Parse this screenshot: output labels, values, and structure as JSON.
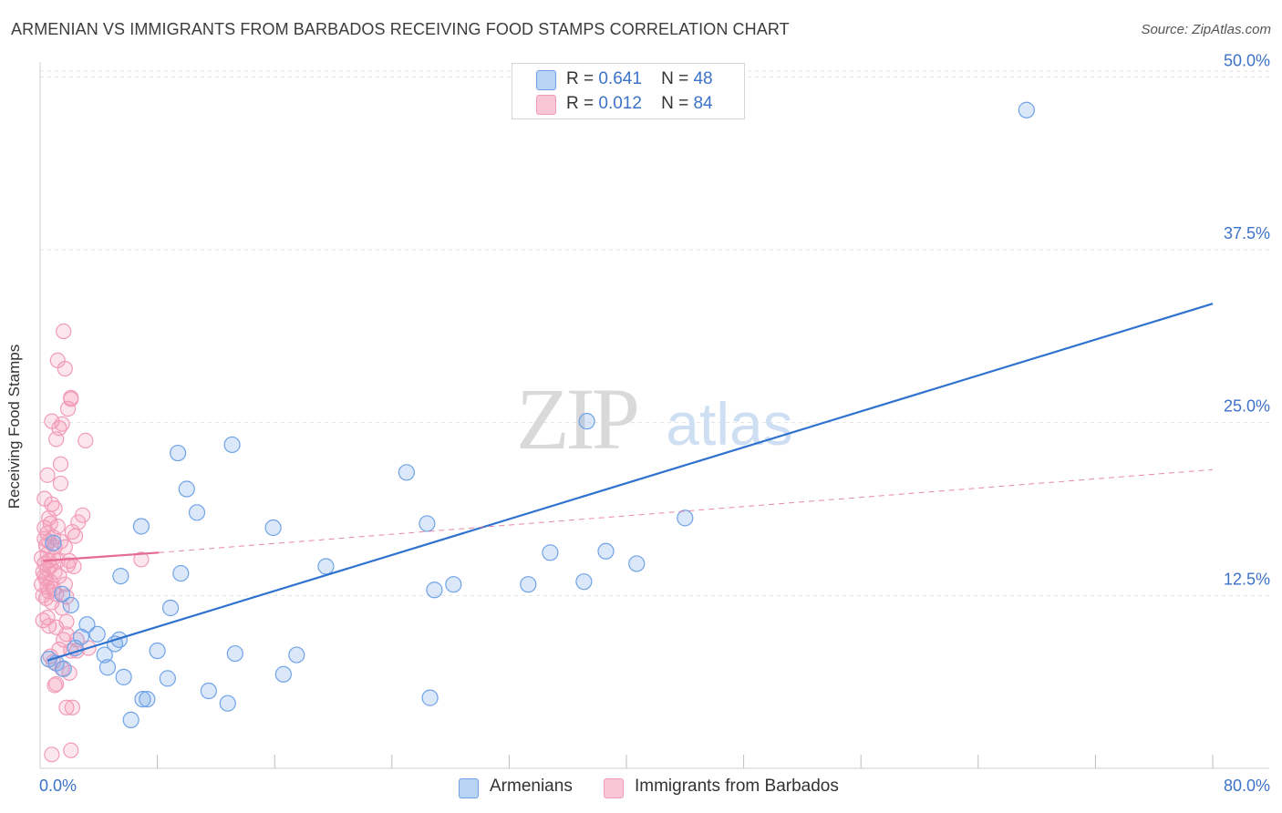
{
  "chart_data": {
    "type": "scatter",
    "title": "ARMENIAN VS IMMIGRANTS FROM BARBADOS RECEIVING FOOD STAMPS CORRELATION CHART",
    "source": "Source: ZipAtlas.com",
    "xlabel": "",
    "ylabel": "Receiving Food Stamps",
    "xlim": [
      0,
      80
    ],
    "ylim": [
      0,
      52
    ],
    "x_tick_labels": [
      "0.0%",
      "80.0%"
    ],
    "y_ticks": [
      12.5,
      25.0,
      37.5,
      50.0
    ],
    "y_tick_labels": [
      "12.5%",
      "25.0%",
      "37.5%",
      "50.0%"
    ],
    "watermark": {
      "zip": "ZIP",
      "atlas": "atlas"
    },
    "legend": [
      {
        "r_label": "R =",
        "r_value": "0.641",
        "n_label": "N =",
        "n_value": "48"
      },
      {
        "r_label": "R =",
        "r_value": "0.012",
        "n_label": "N =",
        "n_value": "84"
      }
    ],
    "series": [
      {
        "name": "Armenians",
        "color": "#6fa3e6",
        "line_color": "#2f72cf",
        "trend": {
          "x": [
            0.5,
            80
          ],
          "y": [
            7.8,
            33.6
          ],
          "style": "solid"
        },
        "points": [
          [
            0.6,
            7.9
          ],
          [
            1.1,
            7.6
          ],
          [
            1.6,
            7.2
          ],
          [
            2.1,
            11.8
          ],
          [
            2.4,
            8.7
          ],
          [
            2.8,
            9.5
          ],
          [
            3.2,
            10.4
          ],
          [
            3.9,
            9.7
          ],
          [
            4.4,
            8.2
          ],
          [
            4.6,
            7.3
          ],
          [
            5.1,
            9.0
          ],
          [
            5.4,
            9.3
          ],
          [
            5.5,
            13.9
          ],
          [
            5.7,
            6.6
          ],
          [
            6.2,
            3.5
          ],
          [
            6.9,
            17.5
          ],
          [
            7.0,
            5.0
          ],
          [
            7.3,
            5.0
          ],
          [
            8.0,
            8.5
          ],
          [
            8.7,
            6.5
          ],
          [
            8.9,
            11.6
          ],
          [
            9.4,
            22.8
          ],
          [
            9.6,
            14.1
          ],
          [
            10.0,
            20.2
          ],
          [
            10.7,
            18.5
          ],
          [
            11.5,
            5.6
          ],
          [
            12.8,
            4.7
          ],
          [
            13.1,
            23.4
          ],
          [
            13.3,
            8.3
          ],
          [
            15.9,
            17.4
          ],
          [
            16.6,
            6.8
          ],
          [
            17.5,
            8.2
          ],
          [
            19.5,
            14.6
          ],
          [
            25.0,
            21.4
          ],
          [
            26.4,
            17.7
          ],
          [
            26.6,
            5.1
          ],
          [
            26.9,
            12.9
          ],
          [
            28.2,
            13.3
          ],
          [
            33.3,
            13.3
          ],
          [
            34.8,
            15.6
          ],
          [
            37.1,
            13.5
          ],
          [
            37.3,
            25.1
          ],
          [
            38.6,
            15.7
          ],
          [
            40.7,
            14.8
          ],
          [
            44.0,
            18.1
          ],
          [
            67.3,
            47.6
          ],
          [
            0.9,
            16.3
          ],
          [
            1.5,
            12.6
          ]
        ]
      },
      {
        "name": "Immigrants from Barbados",
        "color": "#f29bb7",
        "line_color": "#e46b92",
        "trend": {
          "x": [
            0.2,
            8.1
          ],
          "y": [
            15.0,
            15.6
          ],
          "style": "solid"
        },
        "trend_ext": {
          "x": [
            8.1,
            80
          ],
          "y": [
            15.6,
            21.6
          ],
          "style": "dashed"
        },
        "points": [
          [
            0.1,
            13.3
          ],
          [
            0.1,
            15.2
          ],
          [
            0.2,
            14.2
          ],
          [
            0.2,
            12.5
          ],
          [
            0.3,
            16.6
          ],
          [
            0.3,
            13.9
          ],
          [
            0.3,
            17.4
          ],
          [
            0.3,
            19.5
          ],
          [
            0.3,
            14.8
          ],
          [
            0.4,
            12.3
          ],
          [
            0.4,
            13.7
          ],
          [
            0.4,
            16.1
          ],
          [
            0.5,
            15.5
          ],
          [
            0.5,
            17.0
          ],
          [
            0.5,
            13.1
          ],
          [
            0.5,
            14.4
          ],
          [
            0.5,
            10.9
          ],
          [
            0.6,
            10.3
          ],
          [
            0.6,
            12.8
          ],
          [
            0.6,
            15.0
          ],
          [
            0.6,
            16.4
          ],
          [
            0.6,
            18.1
          ],
          [
            0.7,
            13.5
          ],
          [
            0.7,
            14.6
          ],
          [
            0.7,
            17.7
          ],
          [
            0.7,
            8.1
          ],
          [
            0.8,
            12.0
          ],
          [
            0.8,
            19.1
          ],
          [
            0.8,
            25.1
          ],
          [
            0.9,
            15.2
          ],
          [
            0.9,
            16.7
          ],
          [
            0.9,
            13.0
          ],
          [
            0.9,
            7.7
          ],
          [
            1.0,
            6.0
          ],
          [
            1.0,
            14.2
          ],
          [
            1.0,
            16.0
          ],
          [
            1.0,
            18.8
          ],
          [
            1.1,
            23.8
          ],
          [
            1.1,
            12.6
          ],
          [
            1.1,
            10.2
          ],
          [
            1.2,
            15.0
          ],
          [
            1.2,
            29.5
          ],
          [
            1.2,
            17.5
          ],
          [
            1.3,
            24.6
          ],
          [
            1.3,
            13.9
          ],
          [
            1.3,
            8.6
          ],
          [
            1.4,
            20.6
          ],
          [
            1.4,
            22.0
          ],
          [
            1.4,
            16.4
          ],
          [
            1.5,
            24.9
          ],
          [
            1.5,
            11.6
          ],
          [
            1.5,
            7.2
          ],
          [
            1.6,
            31.6
          ],
          [
            1.7,
            28.9
          ],
          [
            1.7,
            13.3
          ],
          [
            1.7,
            16.0
          ],
          [
            1.8,
            12.4
          ],
          [
            1.8,
            10.6
          ],
          [
            1.8,
            9.7
          ],
          [
            1.8,
            4.4
          ],
          [
            1.9,
            26.0
          ],
          [
            1.9,
            14.7
          ],
          [
            2.0,
            15.0
          ],
          [
            2.0,
            6.9
          ],
          [
            2.1,
            26.8
          ],
          [
            2.1,
            26.7
          ],
          [
            2.1,
            8.5
          ],
          [
            2.1,
            1.3
          ],
          [
            2.2,
            4.4
          ],
          [
            2.2,
            17.1
          ],
          [
            2.3,
            14.6
          ],
          [
            2.5,
            8.5
          ],
          [
            2.5,
            9.3
          ],
          [
            2.6,
            17.8
          ],
          [
            2.9,
            18.3
          ],
          [
            3.1,
            23.7
          ],
          [
            3.3,
            8.7
          ],
          [
            6.9,
            15.1
          ],
          [
            0.2,
            10.7
          ],
          [
            0.5,
            21.2
          ],
          [
            0.8,
            1.0
          ],
          [
            1.1,
            6.1
          ],
          [
            1.6,
            9.3
          ],
          [
            2.4,
            16.8
          ]
        ]
      }
    ]
  }
}
